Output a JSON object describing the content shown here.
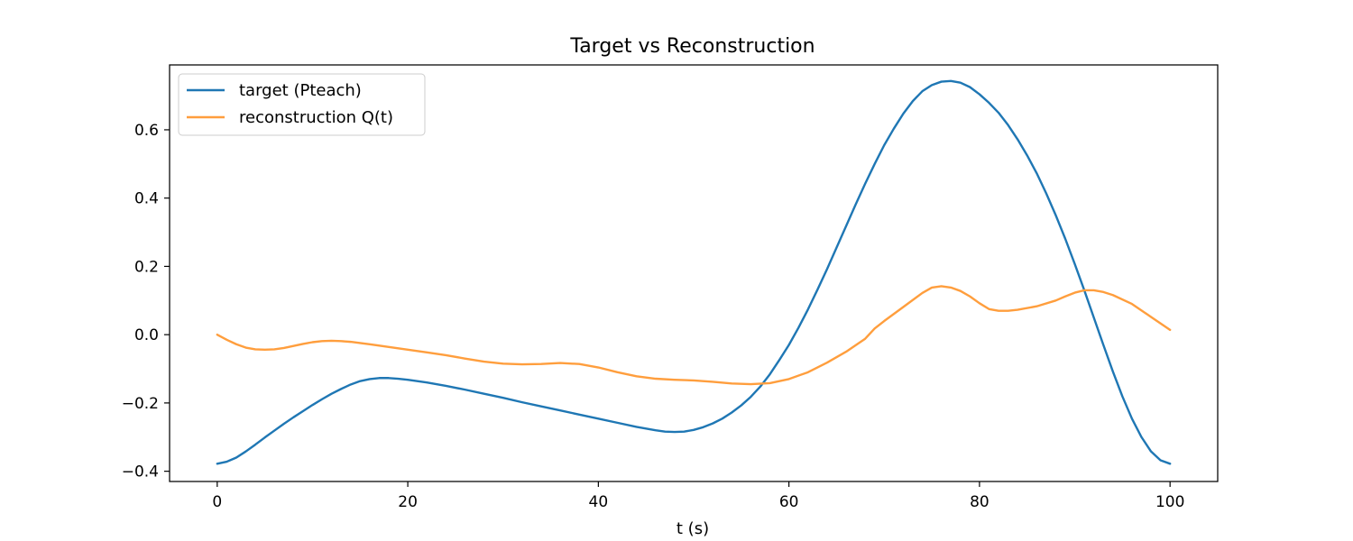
{
  "chart_data": {
    "type": "line",
    "title": "Target vs Reconstruction",
    "xlabel": "t (s)",
    "ylabel": "",
    "xlim": [
      -5,
      105
    ],
    "ylim": [
      -0.43,
      0.79
    ],
    "xticks": [
      0,
      20,
      40,
      60,
      80,
      100
    ],
    "yticks": [
      -0.4,
      -0.2,
      0.0,
      0.2,
      0.4,
      0.6
    ],
    "ytick_labels": [
      "−0.4",
      "−0.2",
      "0.0",
      "0.2",
      "0.4",
      "0.6"
    ],
    "xtick_labels": [
      "0",
      "20",
      "40",
      "60",
      "80",
      "100"
    ],
    "grid": false,
    "legend_position": "top-left",
    "series": [
      {
        "name": "target (Pteach)",
        "color": "#1f77b4",
        "x": [
          0,
          1,
          2,
          3,
          4,
          5,
          6,
          7,
          8,
          9,
          10,
          11,
          12,
          13,
          14,
          15,
          16,
          17,
          18,
          19,
          20,
          22,
          24,
          26,
          28,
          30,
          32,
          34,
          36,
          38,
          40,
          42,
          44,
          46,
          47,
          48,
          49,
          50,
          51,
          52,
          53,
          54,
          55,
          56,
          57,
          58,
          59,
          60,
          61,
          62,
          63,
          64,
          65,
          66,
          67,
          68,
          69,
          70,
          71,
          72,
          73,
          74,
          75,
          76,
          77,
          78,
          79,
          80,
          81,
          82,
          83,
          84,
          85,
          86,
          87,
          88,
          89,
          90,
          91,
          92,
          93,
          94,
          95,
          96,
          97,
          98,
          99,
          100
        ],
        "y": [
          -0.378,
          -0.372,
          -0.36,
          -0.342,
          -0.322,
          -0.301,
          -0.281,
          -0.261,
          -0.242,
          -0.224,
          -0.206,
          -0.189,
          -0.173,
          -0.159,
          -0.146,
          -0.136,
          -0.13,
          -0.127,
          -0.127,
          -0.129,
          -0.132,
          -0.14,
          -0.15,
          -0.161,
          -0.173,
          -0.185,
          -0.198,
          -0.21,
          -0.222,
          -0.234,
          -0.246,
          -0.258,
          -0.27,
          -0.28,
          -0.284,
          -0.285,
          -0.284,
          -0.279,
          -0.271,
          -0.26,
          -0.246,
          -0.228,
          -0.207,
          -0.182,
          -0.152,
          -0.116,
          -0.074,
          -0.03,
          0.02,
          0.074,
          0.132,
          0.192,
          0.255,
          0.318,
          0.381,
          0.442,
          0.5,
          0.555,
          0.603,
          0.647,
          0.684,
          0.713,
          0.731,
          0.741,
          0.743,
          0.738,
          0.725,
          0.704,
          0.679,
          0.65,
          0.614,
          0.572,
          0.525,
          0.473,
          0.414,
          0.35,
          0.281,
          0.207,
          0.13,
          0.05,
          -0.03,
          -0.108,
          -0.181,
          -0.246,
          -0.3,
          -0.342,
          -0.368,
          -0.378
        ]
      },
      {
        "name": "reconstruction Q(t)",
        "color": "#ff9e3d",
        "x": [
          0,
          1,
          2,
          3,
          4,
          5,
          6,
          7,
          8,
          9,
          10,
          11,
          12,
          13,
          14,
          16,
          18,
          20,
          22,
          24,
          26,
          28,
          30,
          32,
          34,
          36,
          38,
          40,
          42,
          44,
          46,
          48,
          50,
          52,
          54,
          56,
          58,
          60,
          62,
          64,
          66,
          68,
          69,
          70,
          72,
          74,
          75,
          76,
          77,
          78,
          79,
          80,
          81,
          82,
          83,
          84,
          86,
          88,
          89,
          90,
          91,
          92,
          93,
          94,
          96,
          98,
          100
        ],
        "y": [
          0.0,
          -0.015,
          -0.028,
          -0.038,
          -0.043,
          -0.044,
          -0.043,
          -0.039,
          -0.033,
          -0.027,
          -0.022,
          -0.019,
          -0.018,
          -0.019,
          -0.021,
          -0.028,
          -0.036,
          -0.044,
          -0.052,
          -0.06,
          -0.07,
          -0.079,
          -0.085,
          -0.087,
          -0.086,
          -0.083,
          -0.086,
          -0.096,
          -0.11,
          -0.122,
          -0.129,
          -0.132,
          -0.134,
          -0.138,
          -0.143,
          -0.145,
          -0.142,
          -0.13,
          -0.11,
          -0.082,
          -0.05,
          -0.012,
          0.018,
          0.04,
          0.081,
          0.122,
          0.138,
          0.142,
          0.138,
          0.128,
          0.112,
          0.092,
          0.075,
          0.07,
          0.07,
          0.073,
          0.083,
          0.1,
          0.112,
          0.123,
          0.13,
          0.13,
          0.125,
          0.116,
          0.09,
          0.052,
          0.014
        ]
      }
    ]
  }
}
